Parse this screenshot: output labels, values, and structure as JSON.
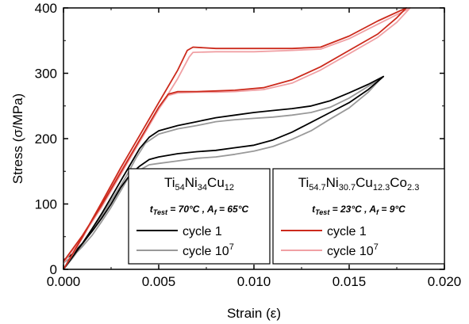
{
  "chart_data": {
    "type": "line",
    "xlabel": "Strain (ε)",
    "ylabel": "Stress (σ/MPa)",
    "xlim": [
      0,
      0.02
    ],
    "ylim": [
      0,
      400
    ],
    "x_ticks": [
      "0.000",
      "0.005",
      "0.010",
      "0.015",
      "0.020"
    ],
    "y_ticks": [
      "0",
      "100",
      "200",
      "300",
      "400"
    ],
    "grid": false,
    "legends": [
      {
        "title": {
          "parts": [
            [
              "Ti",
              ""
            ],
            [
              "54",
              "sub"
            ],
            [
              "Ni",
              ""
            ],
            [
              "34",
              "sub"
            ],
            [
              "Cu",
              ""
            ],
            [
              "12",
              "sub"
            ]
          ]
        },
        "condition": {
          "t_label": "t",
          "t_sub": "Test",
          "t_value": " = 70°C ,",
          "a_label": "A",
          "a_sub": "f",
          "a_value": " = 65°C"
        },
        "entries": [
          {
            "label": "cycle 1",
            "exp": "",
            "color": "#000000"
          },
          {
            "label": "cycle 10",
            "exp": "7",
            "color": "#999999"
          }
        ]
      },
      {
        "title": {
          "parts": [
            [
              "Ti",
              ""
            ],
            [
              "54.7",
              "sub"
            ],
            [
              "Ni",
              ""
            ],
            [
              "30.7",
              "sub"
            ],
            [
              "Cu",
              ""
            ],
            [
              "12.3",
              "sub"
            ],
            [
              "Co",
              ""
            ],
            [
              "2.3",
              "sub"
            ]
          ]
        },
        "condition": {
          "t_label": "t",
          "t_sub": "Test",
          "t_value": " = 23°C ,",
          "a_label": "A",
          "a_sub": "f",
          "a_value": " = 9°C"
        },
        "entries": [
          {
            "label": "cycle 1",
            "exp": "",
            "color": "#cc2a1c"
          },
          {
            "label": "cycle 10",
            "exp": "7",
            "color": "#f0a0a4"
          }
        ]
      }
    ],
    "series": [
      {
        "color": "#999999",
        "points": [
          [
            0,
            0
          ],
          [
            0.0005,
            18
          ],
          [
            0.001,
            38
          ],
          [
            0.0015,
            60
          ],
          [
            0.002,
            82
          ],
          [
            0.0025,
            105
          ],
          [
            0.003,
            128
          ],
          [
            0.0034,
            148
          ],
          [
            0.0038,
            170
          ],
          [
            0.0043,
            193
          ],
          [
            0.005,
            207
          ],
          [
            0.006,
            215
          ],
          [
            0.007,
            220
          ],
          [
            0.008,
            226
          ],
          [
            0.009,
            229
          ],
          [
            0.01,
            231
          ],
          [
            0.011,
            233
          ],
          [
            0.012,
            236
          ],
          [
            0.013,
            240
          ],
          [
            0.014,
            248
          ],
          [
            0.015,
            262
          ],
          [
            0.016,
            280
          ],
          [
            0.0167,
            293
          ],
          [
            0.016,
            271
          ],
          [
            0.015,
            247
          ],
          [
            0.014,
            230
          ],
          [
            0.013,
            212
          ],
          [
            0.012,
            199
          ],
          [
            0.011,
            188
          ],
          [
            0.01,
            181
          ],
          [
            0.009,
            176
          ],
          [
            0.008,
            172
          ],
          [
            0.007,
            170
          ],
          [
            0.006,
            166
          ],
          [
            0.005,
            162
          ],
          [
            0.0045,
            160
          ],
          [
            0.004,
            152
          ],
          [
            0.0034,
            140
          ],
          [
            0.003,
            120
          ],
          [
            0.0025,
            95
          ],
          [
            0.002,
            73
          ],
          [
            0.0015,
            52
          ],
          [
            0.001,
            35
          ],
          [
            0.0005,
            20
          ],
          [
            0,
            10
          ]
        ]
      },
      {
        "color": "#000000",
        "points": [
          [
            0,
            0
          ],
          [
            0.0005,
            20
          ],
          [
            0.001,
            40
          ],
          [
            0.0015,
            62
          ],
          [
            0.002,
            85
          ],
          [
            0.0025,
            110
          ],
          [
            0.003,
            135
          ],
          [
            0.0035,
            160
          ],
          [
            0.004,
            185
          ],
          [
            0.0045,
            202
          ],
          [
            0.005,
            212
          ],
          [
            0.006,
            220
          ],
          [
            0.007,
            226
          ],
          [
            0.008,
            232
          ],
          [
            0.009,
            236
          ],
          [
            0.01,
            240
          ],
          [
            0.011,
            243
          ],
          [
            0.012,
            246
          ],
          [
            0.013,
            250
          ],
          [
            0.014,
            258
          ],
          [
            0.015,
            270
          ],
          [
            0.016,
            283
          ],
          [
            0.0168,
            295
          ],
          [
            0.016,
            275
          ],
          [
            0.015,
            255
          ],
          [
            0.014,
            240
          ],
          [
            0.013,
            225
          ],
          [
            0.012,
            210
          ],
          [
            0.011,
            198
          ],
          [
            0.01,
            190
          ],
          [
            0.009,
            186
          ],
          [
            0.008,
            182
          ],
          [
            0.007,
            180
          ],
          [
            0.006,
            177
          ],
          [
            0.005,
            172
          ],
          [
            0.0045,
            168
          ],
          [
            0.004,
            158
          ],
          [
            0.0035,
            145
          ],
          [
            0.003,
            125
          ],
          [
            0.0025,
            100
          ],
          [
            0.002,
            78
          ],
          [
            0.0015,
            58
          ],
          [
            0.001,
            40
          ],
          [
            0.0005,
            24
          ],
          [
            0,
            14
          ]
        ]
      },
      {
        "color": "#f0a0a4",
        "points": [
          [
            0,
            0
          ],
          [
            0.001,
            48
          ],
          [
            0.002,
            100
          ],
          [
            0.003,
            150
          ],
          [
            0.004,
            198
          ],
          [
            0.005,
            245
          ],
          [
            0.006,
            292
          ],
          [
            0.0066,
            325
          ],
          [
            0.0068,
            332
          ],
          [
            0.008,
            333
          ],
          [
            0.01,
            333
          ],
          [
            0.012,
            335
          ],
          [
            0.0135,
            337
          ],
          [
            0.015,
            353
          ],
          [
            0.0165,
            375
          ],
          [
            0.018,
            397
          ],
          [
            0.0182,
            400
          ],
          [
            0.0175,
            378
          ],
          [
            0.0165,
            355
          ],
          [
            0.015,
            330
          ],
          [
            0.0135,
            305
          ],
          [
            0.012,
            285
          ],
          [
            0.0105,
            275
          ],
          [
            0.009,
            272
          ],
          [
            0.008,
            271
          ],
          [
            0.007,
            271
          ],
          [
            0.006,
            270
          ],
          [
            0.0055,
            266
          ],
          [
            0.005,
            245
          ],
          [
            0.004,
            195
          ],
          [
            0.003,
            145
          ],
          [
            0.002,
            95
          ],
          [
            0.001,
            50
          ],
          [
            0,
            10
          ]
        ]
      },
      {
        "color": "#cc2a1c",
        "points": [
          [
            0,
            0
          ],
          [
            0.001,
            50
          ],
          [
            0.002,
            102
          ],
          [
            0.003,
            155
          ],
          [
            0.004,
            205
          ],
          [
            0.005,
            255
          ],
          [
            0.006,
            305
          ],
          [
            0.0065,
            335
          ],
          [
            0.0068,
            340
          ],
          [
            0.008,
            338
          ],
          [
            0.01,
            338
          ],
          [
            0.012,
            338
          ],
          [
            0.0135,
            340
          ],
          [
            0.015,
            357
          ],
          [
            0.0165,
            380
          ],
          [
            0.018,
            400
          ],
          [
            0.0175,
            385
          ],
          [
            0.0165,
            360
          ],
          [
            0.015,
            335
          ],
          [
            0.0135,
            310
          ],
          [
            0.012,
            290
          ],
          [
            0.0105,
            278
          ],
          [
            0.009,
            274
          ],
          [
            0.008,
            273
          ],
          [
            0.007,
            272
          ],
          [
            0.006,
            272
          ],
          [
            0.0055,
            268
          ],
          [
            0.005,
            248
          ],
          [
            0.004,
            198
          ],
          [
            0.003,
            148
          ],
          [
            0.002,
            98
          ],
          [
            0.001,
            52
          ],
          [
            0,
            12
          ]
        ]
      }
    ]
  }
}
